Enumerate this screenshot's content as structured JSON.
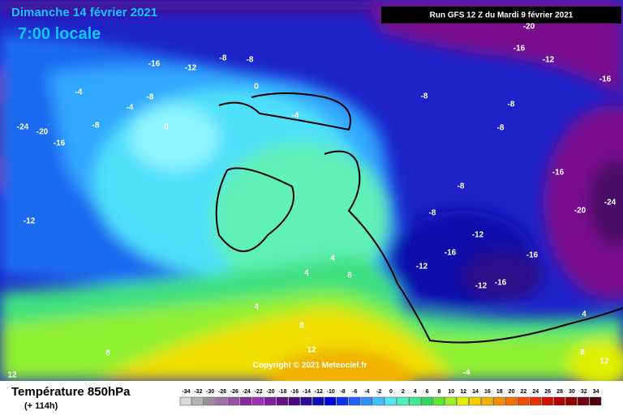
{
  "header": {
    "title": "Dimanche 14 février 2021",
    "time": "7:00 locale",
    "run": "Run GFS 12 Z du Mardi 9 février 2021"
  },
  "map": {
    "copyright": "Copyright © 2021 Meteociel.fr",
    "labels": [
      -24,
      -20,
      -16,
      -12,
      -8,
      -4,
      -4,
      -8,
      -12,
      -16,
      -8,
      -8,
      0,
      0,
      -4,
      -8,
      -8,
      -12,
      -16,
      -20,
      -16,
      -16,
      -20,
      -24,
      -8,
      -8,
      -8,
      -12,
      -16,
      -16,
      -12,
      -12,
      -16,
      4,
      4,
      8,
      4,
      8,
      8,
      12,
      12,
      8,
      12,
      -4,
      4
    ]
  },
  "footer": {
    "variable": "Température 850hPa",
    "lead": "(+ 114h)"
  },
  "legend": {
    "values": [
      -34,
      -32,
      -30,
      -28,
      -26,
      -24,
      -22,
      -20,
      -18,
      -16,
      -14,
      -12,
      -10,
      -8,
      -6,
      -4,
      -2,
      0,
      2,
      4,
      6,
      8,
      10,
      12,
      14,
      16,
      18,
      20,
      22,
      24,
      26,
      28,
      30,
      32,
      34
    ],
    "colors": [
      "#d9d9d9",
      "#b4b4b4",
      "#a08ca0",
      "#a070a8",
      "#9a50a8",
      "#8a2aa0",
      "#a030b8",
      "#8020a0",
      "#6a108a",
      "#4a0a80",
      "#2a1090",
      "#1010b0",
      "#0000d8",
      "#1030f0",
      "#2060ff",
      "#3090ff",
      "#40c0ff",
      "#50e8f8",
      "#50f0c0",
      "#40e890",
      "#30d860",
      "#60e830",
      "#a0f020",
      "#e0f000",
      "#f0d000",
      "#f0b000",
      "#f09000",
      "#f07000",
      "#f05000",
      "#e83000",
      "#d01000",
      "#b00000",
      "#900000",
      "#700010",
      "#500010"
    ]
  }
}
